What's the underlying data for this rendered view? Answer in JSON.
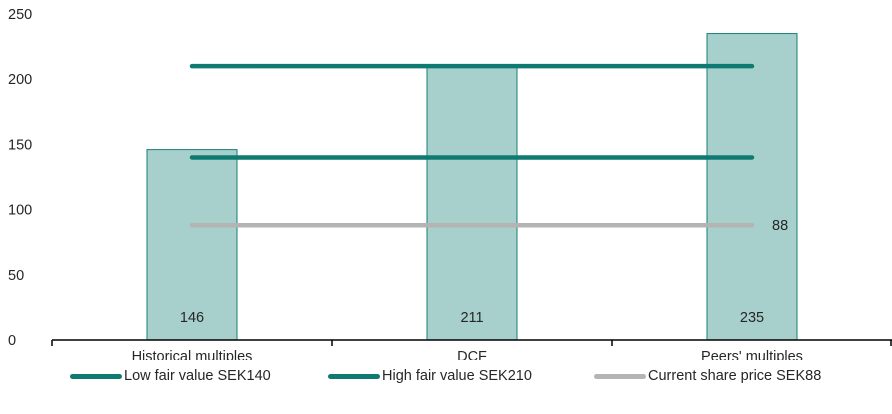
{
  "chart_data": {
    "type": "bar",
    "categories": [
      "Historical multiples",
      "DCF",
      "Peers' multiples"
    ],
    "values": [
      146,
      211,
      235
    ],
    "ylim": [
      0,
      250
    ],
    "yticks": [
      0,
      50,
      100,
      150,
      200,
      250
    ],
    "grid": false,
    "bar_color": "#a7d0cd",
    "bar_edge_color": "#157e77",
    "reference_lines": [
      {
        "name": "Low fair value SEK140",
        "value": 140,
        "color": "#0f7a72"
      },
      {
        "name": "High fair value SEK210",
        "value": 210,
        "color": "#0f7a72"
      },
      {
        "name": "Current share price SEK88",
        "value": 88,
        "color": "#b4b4b4",
        "label": "88"
      }
    ],
    "legend_position": "bottom"
  }
}
